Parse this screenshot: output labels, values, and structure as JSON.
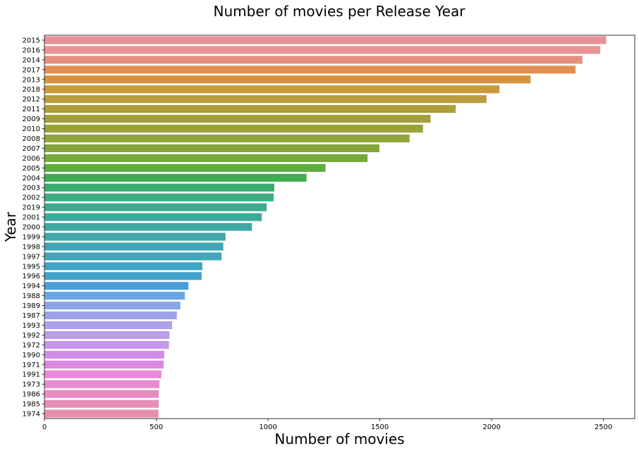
{
  "chart_data": {
    "type": "bar",
    "orientation": "horizontal",
    "title": "Number of movies per Release Year",
    "xlabel": "Number of movies",
    "ylabel": "Year",
    "xlim": [
      0,
      2640
    ],
    "xticks": [
      0,
      500,
      1000,
      1500,
      2000,
      2500
    ],
    "grid": false,
    "categories": [
      "2015",
      "2016",
      "2014",
      "2017",
      "2013",
      "2018",
      "2012",
      "2011",
      "2009",
      "2010",
      "2008",
      "2007",
      "2006",
      "2005",
      "2004",
      "2003",
      "2002",
      "2019",
      "2001",
      "2000",
      "1999",
      "1998",
      "1997",
      "1995",
      "1996",
      "1994",
      "1988",
      "1989",
      "1987",
      "1993",
      "1992",
      "1972",
      "1990",
      "1971",
      "1991",
      "1973",
      "1986",
      "1985",
      "1974"
    ],
    "values": [
      2512,
      2486,
      2406,
      2375,
      2174,
      2035,
      1977,
      1839,
      1727,
      1693,
      1633,
      1498,
      1445,
      1257,
      1172,
      1028,
      1025,
      994,
      972,
      928,
      810,
      800,
      792,
      706,
      703,
      644,
      628,
      608,
      592,
      571,
      559,
      557,
      536,
      533,
      523,
      514,
      511,
      511,
      510
    ],
    "colors": [
      "#e8919a",
      "#ea9394",
      "#e78f7e",
      "#e38e52",
      "#d4933e",
      "#c89a3c",
      "#bb9c3a",
      "#ae9e38",
      "#a3a039",
      "#9aa23a",
      "#8fa43a",
      "#84a63b",
      "#76a93c",
      "#5fac3f",
      "#3fac4f",
      "#3aab70",
      "#3bab82",
      "#3caa90",
      "#3da99a",
      "#3ea9a3",
      "#3fa8ab",
      "#3fa7b3",
      "#40a6ba",
      "#41a4c3",
      "#43a2cc",
      "#4a9ed7",
      "#68a5e2",
      "#8aa6e6",
      "#9ea3e9",
      "#afa0eb",
      "#bb9ce9",
      "#c697e8",
      "#d08fe5",
      "#de87e1",
      "#e58ad8",
      "#e68bce",
      "#e78cc3",
      "#e78db8",
      "#e88eab"
    ]
  }
}
